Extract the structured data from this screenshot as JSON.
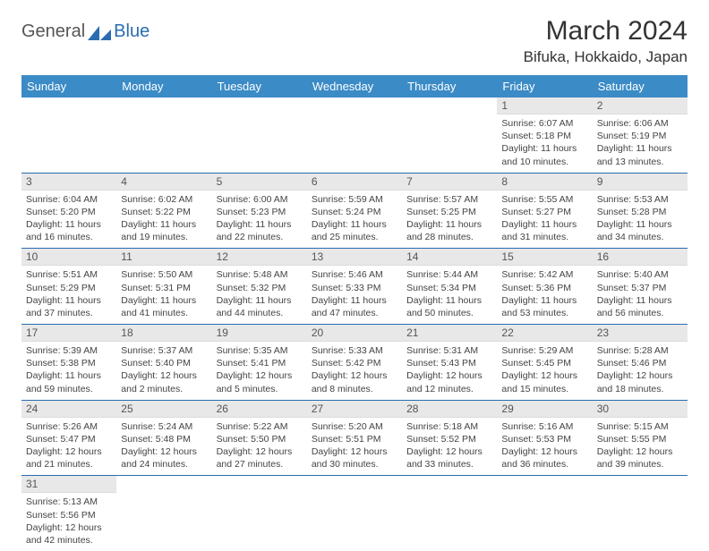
{
  "brand": {
    "part1": "General",
    "part2": "Blue"
  },
  "title": "March 2024",
  "location": "Bifuka, Hokkaido, Japan",
  "colors": {
    "header_bg": "#3b8bc6",
    "rule": "#2a6cb0",
    "daynum_bg": "#e8e8e8",
    "text": "#333333"
  },
  "weekdays": [
    "Sunday",
    "Monday",
    "Tuesday",
    "Wednesday",
    "Thursday",
    "Friday",
    "Saturday"
  ],
  "weeks": [
    [
      {
        "n": "",
        "sr": "",
        "ss": "",
        "dl": ""
      },
      {
        "n": "",
        "sr": "",
        "ss": "",
        "dl": ""
      },
      {
        "n": "",
        "sr": "",
        "ss": "",
        "dl": ""
      },
      {
        "n": "",
        "sr": "",
        "ss": "",
        "dl": ""
      },
      {
        "n": "",
        "sr": "",
        "ss": "",
        "dl": ""
      },
      {
        "n": "1",
        "sr": "Sunrise: 6:07 AM",
        "ss": "Sunset: 5:18 PM",
        "dl": "Daylight: 11 hours and 10 minutes."
      },
      {
        "n": "2",
        "sr": "Sunrise: 6:06 AM",
        "ss": "Sunset: 5:19 PM",
        "dl": "Daylight: 11 hours and 13 minutes."
      }
    ],
    [
      {
        "n": "3",
        "sr": "Sunrise: 6:04 AM",
        "ss": "Sunset: 5:20 PM",
        "dl": "Daylight: 11 hours and 16 minutes."
      },
      {
        "n": "4",
        "sr": "Sunrise: 6:02 AM",
        "ss": "Sunset: 5:22 PM",
        "dl": "Daylight: 11 hours and 19 minutes."
      },
      {
        "n": "5",
        "sr": "Sunrise: 6:00 AM",
        "ss": "Sunset: 5:23 PM",
        "dl": "Daylight: 11 hours and 22 minutes."
      },
      {
        "n": "6",
        "sr": "Sunrise: 5:59 AM",
        "ss": "Sunset: 5:24 PM",
        "dl": "Daylight: 11 hours and 25 minutes."
      },
      {
        "n": "7",
        "sr": "Sunrise: 5:57 AM",
        "ss": "Sunset: 5:25 PM",
        "dl": "Daylight: 11 hours and 28 minutes."
      },
      {
        "n": "8",
        "sr": "Sunrise: 5:55 AM",
        "ss": "Sunset: 5:27 PM",
        "dl": "Daylight: 11 hours and 31 minutes."
      },
      {
        "n": "9",
        "sr": "Sunrise: 5:53 AM",
        "ss": "Sunset: 5:28 PM",
        "dl": "Daylight: 11 hours and 34 minutes."
      }
    ],
    [
      {
        "n": "10",
        "sr": "Sunrise: 5:51 AM",
        "ss": "Sunset: 5:29 PM",
        "dl": "Daylight: 11 hours and 37 minutes."
      },
      {
        "n": "11",
        "sr": "Sunrise: 5:50 AM",
        "ss": "Sunset: 5:31 PM",
        "dl": "Daylight: 11 hours and 41 minutes."
      },
      {
        "n": "12",
        "sr": "Sunrise: 5:48 AM",
        "ss": "Sunset: 5:32 PM",
        "dl": "Daylight: 11 hours and 44 minutes."
      },
      {
        "n": "13",
        "sr": "Sunrise: 5:46 AM",
        "ss": "Sunset: 5:33 PM",
        "dl": "Daylight: 11 hours and 47 minutes."
      },
      {
        "n": "14",
        "sr": "Sunrise: 5:44 AM",
        "ss": "Sunset: 5:34 PM",
        "dl": "Daylight: 11 hours and 50 minutes."
      },
      {
        "n": "15",
        "sr": "Sunrise: 5:42 AM",
        "ss": "Sunset: 5:36 PM",
        "dl": "Daylight: 11 hours and 53 minutes."
      },
      {
        "n": "16",
        "sr": "Sunrise: 5:40 AM",
        "ss": "Sunset: 5:37 PM",
        "dl": "Daylight: 11 hours and 56 minutes."
      }
    ],
    [
      {
        "n": "17",
        "sr": "Sunrise: 5:39 AM",
        "ss": "Sunset: 5:38 PM",
        "dl": "Daylight: 11 hours and 59 minutes."
      },
      {
        "n": "18",
        "sr": "Sunrise: 5:37 AM",
        "ss": "Sunset: 5:40 PM",
        "dl": "Daylight: 12 hours and 2 minutes."
      },
      {
        "n": "19",
        "sr": "Sunrise: 5:35 AM",
        "ss": "Sunset: 5:41 PM",
        "dl": "Daylight: 12 hours and 5 minutes."
      },
      {
        "n": "20",
        "sr": "Sunrise: 5:33 AM",
        "ss": "Sunset: 5:42 PM",
        "dl": "Daylight: 12 hours and 8 minutes."
      },
      {
        "n": "21",
        "sr": "Sunrise: 5:31 AM",
        "ss": "Sunset: 5:43 PM",
        "dl": "Daylight: 12 hours and 12 minutes."
      },
      {
        "n": "22",
        "sr": "Sunrise: 5:29 AM",
        "ss": "Sunset: 5:45 PM",
        "dl": "Daylight: 12 hours and 15 minutes."
      },
      {
        "n": "23",
        "sr": "Sunrise: 5:28 AM",
        "ss": "Sunset: 5:46 PM",
        "dl": "Daylight: 12 hours and 18 minutes."
      }
    ],
    [
      {
        "n": "24",
        "sr": "Sunrise: 5:26 AM",
        "ss": "Sunset: 5:47 PM",
        "dl": "Daylight: 12 hours and 21 minutes."
      },
      {
        "n": "25",
        "sr": "Sunrise: 5:24 AM",
        "ss": "Sunset: 5:48 PM",
        "dl": "Daylight: 12 hours and 24 minutes."
      },
      {
        "n": "26",
        "sr": "Sunrise: 5:22 AM",
        "ss": "Sunset: 5:50 PM",
        "dl": "Daylight: 12 hours and 27 minutes."
      },
      {
        "n": "27",
        "sr": "Sunrise: 5:20 AM",
        "ss": "Sunset: 5:51 PM",
        "dl": "Daylight: 12 hours and 30 minutes."
      },
      {
        "n": "28",
        "sr": "Sunrise: 5:18 AM",
        "ss": "Sunset: 5:52 PM",
        "dl": "Daylight: 12 hours and 33 minutes."
      },
      {
        "n": "29",
        "sr": "Sunrise: 5:16 AM",
        "ss": "Sunset: 5:53 PM",
        "dl": "Daylight: 12 hours and 36 minutes."
      },
      {
        "n": "30",
        "sr": "Sunrise: 5:15 AM",
        "ss": "Sunset: 5:55 PM",
        "dl": "Daylight: 12 hours and 39 minutes."
      }
    ],
    [
      {
        "n": "31",
        "sr": "Sunrise: 5:13 AM",
        "ss": "Sunset: 5:56 PM",
        "dl": "Daylight: 12 hours and 42 minutes."
      },
      {
        "n": "",
        "sr": "",
        "ss": "",
        "dl": ""
      },
      {
        "n": "",
        "sr": "",
        "ss": "",
        "dl": ""
      },
      {
        "n": "",
        "sr": "",
        "ss": "",
        "dl": ""
      },
      {
        "n": "",
        "sr": "",
        "ss": "",
        "dl": ""
      },
      {
        "n": "",
        "sr": "",
        "ss": "",
        "dl": ""
      },
      {
        "n": "",
        "sr": "",
        "ss": "",
        "dl": ""
      }
    ]
  ]
}
